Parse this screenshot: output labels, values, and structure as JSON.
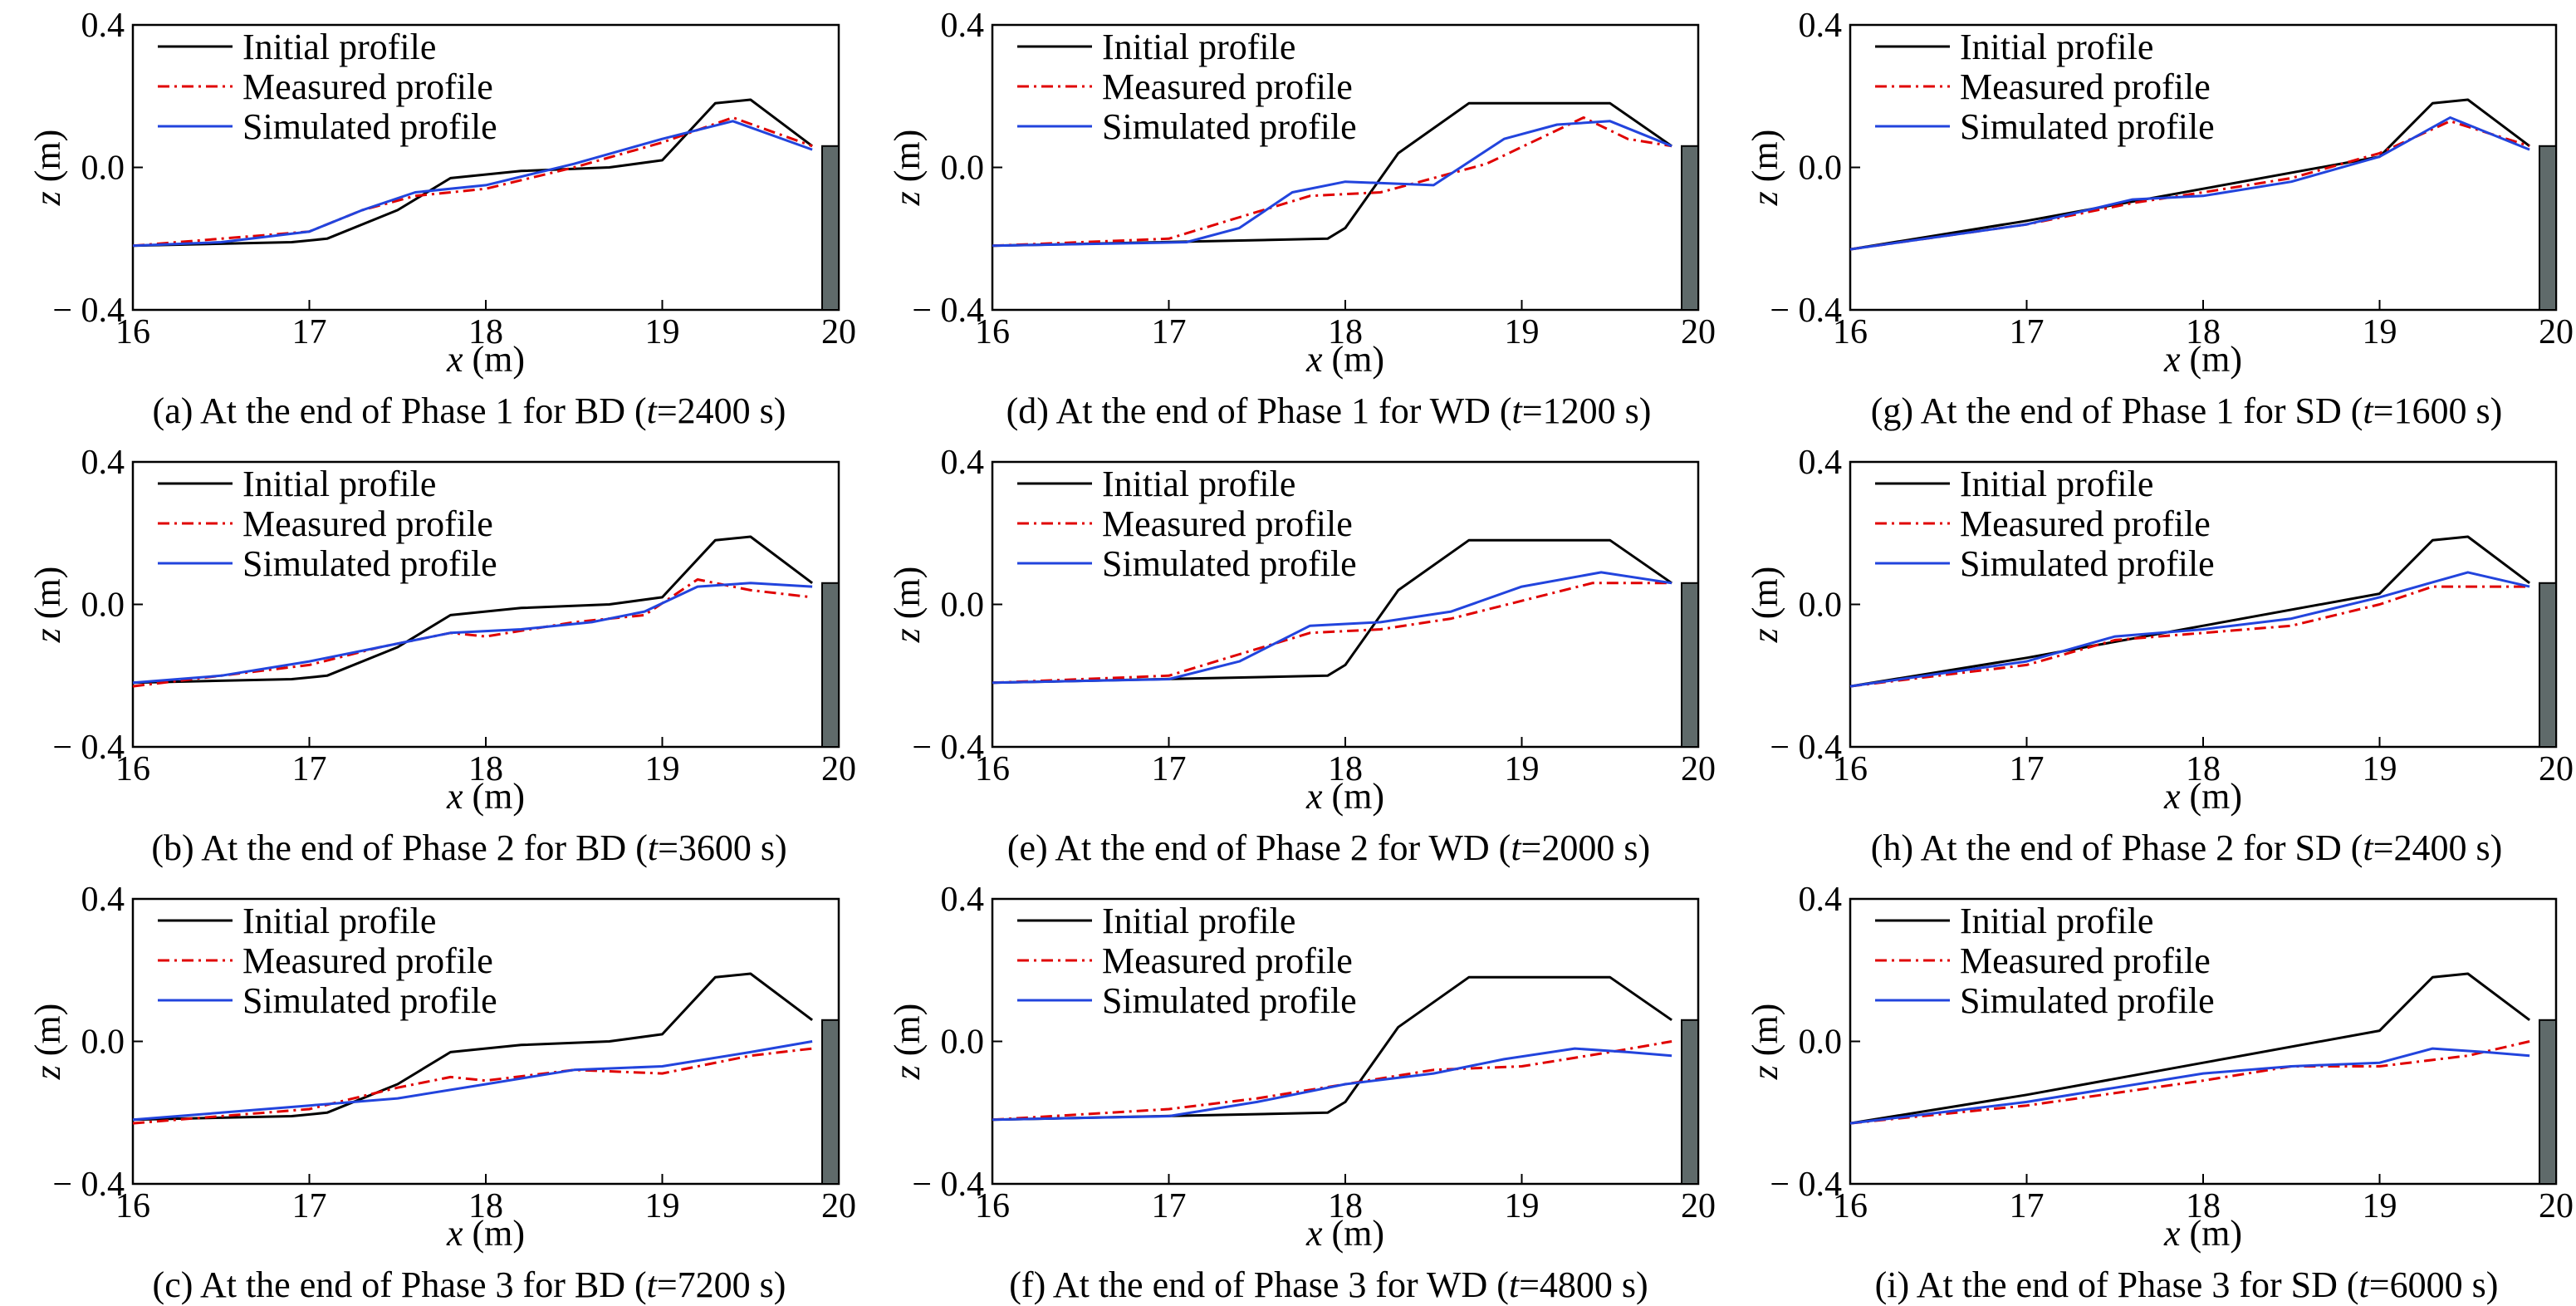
{
  "colors": {
    "initial": "#000000",
    "measured": "#e00000",
    "simulated": "#2244dd",
    "wall": "#5f6a6a"
  },
  "chart_data": [
    {
      "type": "line",
      "caption": "(a) At the end of Phase 1 for BD (t=2400 s)",
      "caption_parts": [
        "(a) At the end of Phase 1 for BD (",
        "t",
        "=2400 s)"
      ],
      "xlabel": "x (m)",
      "ylabel": "z (m)",
      "xlim": [
        16,
        20
      ],
      "ylim": [
        -0.4,
        0.4
      ],
      "xticks": [
        "16",
        "17",
        "18",
        "19",
        "20"
      ],
      "yticks": [
        "0.4",
        "0.0",
        "− 0.4"
      ],
      "legend_position": "upper-left",
      "series": [
        {
          "name": "Initial profile",
          "style": "solid",
          "x": [
            16,
            16.9,
            17.1,
            17.5,
            17.8,
            18.2,
            18.7,
            19,
            19.3,
            19.5,
            19.85
          ],
          "y": [
            -0.22,
            -0.21,
            -0.2,
            -0.12,
            -0.03,
            -0.01,
            0.0,
            0.02,
            0.18,
            0.19,
            0.06
          ]
        },
        {
          "name": "Measured profile",
          "style": "dashdot",
          "x": [
            16,
            16.5,
            17.0,
            17.3,
            17.6,
            18.0,
            18.5,
            19.0,
            19.4,
            19.85
          ],
          "y": [
            -0.22,
            -0.2,
            -0.18,
            -0.12,
            -0.08,
            -0.06,
            0.0,
            0.07,
            0.14,
            0.06
          ]
        },
        {
          "name": "Simulated profile",
          "style": "solid",
          "x": [
            16,
            16.5,
            17.0,
            17.3,
            17.6,
            18.0,
            18.5,
            19.0,
            19.4,
            19.85
          ],
          "y": [
            -0.22,
            -0.21,
            -0.18,
            -0.12,
            -0.07,
            -0.05,
            0.01,
            0.08,
            0.13,
            0.05
          ]
        }
      ]
    },
    {
      "type": "line",
      "caption": "(b) At the end of Phase 2 for BD (t=3600 s)",
      "caption_parts": [
        "(b) At the end of Phase 2 for BD (",
        "t",
        "=3600 s)"
      ],
      "xlabel": "x (m)",
      "ylabel": "z (m)",
      "xlim": [
        16,
        20
      ],
      "ylim": [
        -0.4,
        0.4
      ],
      "xticks": [
        "16",
        "17",
        "18",
        "19",
        "20"
      ],
      "yticks": [
        "0.4",
        "0.0",
        "− 0.4"
      ],
      "legend_position": "upper-left",
      "series": [
        {
          "name": "Initial profile",
          "style": "solid",
          "x": [
            16,
            16.9,
            17.1,
            17.5,
            17.8,
            18.2,
            18.7,
            19,
            19.3,
            19.5,
            19.85
          ],
          "y": [
            -0.22,
            -0.21,
            -0.2,
            -0.12,
            -0.03,
            -0.01,
            0.0,
            0.02,
            0.18,
            0.19,
            0.06
          ]
        },
        {
          "name": "Measured profile",
          "style": "dashdot",
          "x": [
            16,
            16.5,
            17.0,
            17.4,
            17.8,
            18.0,
            18.5,
            18.9,
            19.2,
            19.5,
            19.85
          ],
          "y": [
            -0.23,
            -0.2,
            -0.17,
            -0.12,
            -0.08,
            -0.09,
            -0.05,
            -0.03,
            0.07,
            0.04,
            0.02
          ]
        },
        {
          "name": "Simulated profile",
          "style": "solid",
          "x": [
            16,
            16.5,
            17.0,
            17.4,
            17.8,
            18.2,
            18.6,
            18.9,
            19.2,
            19.5,
            19.85
          ],
          "y": [
            -0.22,
            -0.2,
            -0.16,
            -0.12,
            -0.08,
            -0.07,
            -0.05,
            -0.02,
            0.05,
            0.06,
            0.05
          ]
        }
      ]
    },
    {
      "type": "line",
      "caption": "(c) At the end of Phase 3 for BD (t=7200 s)",
      "caption_parts": [
        "(c) At the end of Phase 3 for BD (",
        "t",
        "=7200 s)"
      ],
      "xlabel": "x (m)",
      "ylabel": "z (m)",
      "xlim": [
        16,
        20
      ],
      "ylim": [
        -0.4,
        0.4
      ],
      "xticks": [
        "16",
        "17",
        "18",
        "19",
        "20"
      ],
      "yticks": [
        "0.4",
        "0.0",
        "− 0.4"
      ],
      "legend_position": "upper-left",
      "series": [
        {
          "name": "Initial profile",
          "style": "solid",
          "x": [
            16,
            16.9,
            17.1,
            17.5,
            17.8,
            18.2,
            18.7,
            19,
            19.3,
            19.5,
            19.85
          ],
          "y": [
            -0.22,
            -0.21,
            -0.2,
            -0.12,
            -0.03,
            -0.01,
            0.0,
            0.02,
            0.18,
            0.19,
            0.06
          ]
        },
        {
          "name": "Measured profile",
          "style": "dashdot",
          "x": [
            16,
            16.5,
            17.0,
            17.5,
            17.8,
            18.0,
            18.5,
            19.0,
            19.5,
            19.85
          ],
          "y": [
            -0.23,
            -0.21,
            -0.19,
            -0.13,
            -0.1,
            -0.11,
            -0.08,
            -0.09,
            -0.04,
            -0.02
          ]
        },
        {
          "name": "Simulated profile",
          "style": "solid",
          "x": [
            16,
            16.5,
            17.0,
            17.5,
            18.0,
            18.5,
            19.0,
            19.5,
            19.85
          ],
          "y": [
            -0.22,
            -0.2,
            -0.18,
            -0.16,
            -0.12,
            -0.08,
            -0.07,
            -0.03,
            0.0
          ]
        }
      ]
    },
    {
      "type": "line",
      "caption": "(d) At the end of Phase 1 for WD (t=1200 s)",
      "caption_parts": [
        "(d) At the end of Phase 1 for WD (",
        "t",
        "=1200 s)"
      ],
      "xlabel": "x (m)",
      "ylabel": "z (m)",
      "xlim": [
        16,
        20
      ],
      "ylim": [
        -0.4,
        0.4
      ],
      "xticks": [
        "16",
        "17",
        "18",
        "19",
        "20"
      ],
      "yticks": [
        "0.4",
        "0.0",
        "− 0.4"
      ],
      "legend_position": "upper-left",
      "series": [
        {
          "name": "Initial profile",
          "style": "solid",
          "x": [
            16,
            17.9,
            18.0,
            18.3,
            18.7,
            19.0,
            19.5,
            19.85
          ],
          "y": [
            -0.22,
            -0.2,
            -0.17,
            0.04,
            0.18,
            0.18,
            0.18,
            0.06
          ]
        },
        {
          "name": "Measured profile",
          "style": "dashdot",
          "x": [
            16,
            17.0,
            17.4,
            17.8,
            18.2,
            18.8,
            19.35,
            19.6,
            19.85
          ],
          "y": [
            -0.22,
            -0.2,
            -0.14,
            -0.08,
            -0.07,
            0.01,
            0.14,
            0.08,
            0.06
          ]
        },
        {
          "name": "Simulated profile",
          "style": "solid",
          "x": [
            16,
            17.1,
            17.4,
            17.7,
            18.0,
            18.5,
            18.9,
            19.2,
            19.5,
            19.85
          ],
          "y": [
            -0.22,
            -0.21,
            -0.17,
            -0.07,
            -0.04,
            -0.05,
            0.08,
            0.12,
            0.13,
            0.06
          ]
        }
      ]
    },
    {
      "type": "line",
      "caption": "(e) At the end of Phase 2 for WD (t=2000 s)",
      "caption_parts": [
        "(e) At the end of Phase 2 for WD (",
        "t",
        "=2000 s)"
      ],
      "xlabel": "x (m)",
      "ylabel": "z (m)",
      "xlim": [
        16,
        20
      ],
      "ylim": [
        -0.4,
        0.4
      ],
      "xticks": [
        "16",
        "17",
        "18",
        "19",
        "20"
      ],
      "yticks": [
        "0.4",
        "0.0",
        "− 0.4"
      ],
      "legend_position": "upper-left",
      "series": [
        {
          "name": "Initial profile",
          "style": "solid",
          "x": [
            16,
            17.9,
            18.0,
            18.3,
            18.7,
            19.0,
            19.5,
            19.85
          ],
          "y": [
            -0.22,
            -0.2,
            -0.17,
            0.04,
            0.18,
            0.18,
            0.18,
            0.06
          ]
        },
        {
          "name": "Measured profile",
          "style": "dashdot",
          "x": [
            16,
            17.0,
            17.4,
            17.8,
            18.2,
            18.6,
            19.0,
            19.4,
            19.85
          ],
          "y": [
            -0.22,
            -0.2,
            -0.14,
            -0.08,
            -0.07,
            -0.04,
            0.01,
            0.06,
            0.06
          ]
        },
        {
          "name": "Simulated profile",
          "style": "solid",
          "x": [
            16,
            17.0,
            17.4,
            17.8,
            18.2,
            18.6,
            19.0,
            19.45,
            19.85
          ],
          "y": [
            -0.22,
            -0.21,
            -0.16,
            -0.06,
            -0.05,
            -0.02,
            0.05,
            0.09,
            0.06
          ]
        }
      ]
    },
    {
      "type": "line",
      "caption": "(f) At the end of Phase 3 for WD (t=4800 s)",
      "caption_parts": [
        "(f) At the end of Phase 3 for WD (",
        "t",
        "=4800 s)"
      ],
      "xlabel": "x (m)",
      "ylabel": "z (m)",
      "xlim": [
        16,
        20
      ],
      "ylim": [
        -0.4,
        0.4
      ],
      "xticks": [
        "16",
        "17",
        "18",
        "19",
        "20"
      ],
      "yticks": [
        "0.4",
        "0.0",
        "− 0.4"
      ],
      "legend_position": "upper-left",
      "series": [
        {
          "name": "Initial profile",
          "style": "solid",
          "x": [
            16,
            17.9,
            18.0,
            18.3,
            18.7,
            19.0,
            19.5,
            19.85
          ],
          "y": [
            -0.22,
            -0.2,
            -0.17,
            0.04,
            0.18,
            0.18,
            0.18,
            0.06
          ]
        },
        {
          "name": "Measured profile",
          "style": "dashdot",
          "x": [
            16,
            17.0,
            17.5,
            18.0,
            18.5,
            19.0,
            19.5,
            19.85
          ],
          "y": [
            -0.22,
            -0.19,
            -0.16,
            -0.12,
            -0.08,
            -0.07,
            -0.03,
            0.0
          ]
        },
        {
          "name": "Simulated profile",
          "style": "solid",
          "x": [
            16,
            17.0,
            17.5,
            18.0,
            18.5,
            18.9,
            19.3,
            19.6,
            19.85
          ],
          "y": [
            -0.22,
            -0.21,
            -0.17,
            -0.12,
            -0.09,
            -0.05,
            -0.02,
            -0.03,
            -0.04
          ]
        }
      ]
    },
    {
      "type": "line",
      "caption": "(g) At the end of Phase 1 for SD (t=1600 s)",
      "caption_parts": [
        "(g) At the end of Phase 1 for SD (",
        "t",
        "=1600 s)"
      ],
      "xlabel": "x (m)",
      "ylabel": "z (m)",
      "xlim": [
        16,
        20
      ],
      "ylim": [
        -0.4,
        0.4
      ],
      "xticks": [
        "16",
        "17",
        "18",
        "19",
        "20"
      ],
      "yticks": [
        "0.4",
        "0.0",
        "− 0.4"
      ],
      "legend_position": "upper-left",
      "series": [
        {
          "name": "Initial profile",
          "style": "solid",
          "x": [
            16,
            17.0,
            18.0,
            19.0,
            19.3,
            19.5,
            19.85
          ],
          "y": [
            -0.23,
            -0.15,
            -0.06,
            0.03,
            0.18,
            0.19,
            0.06
          ]
        },
        {
          "name": "Measured profile",
          "style": "dashdot",
          "x": [
            16,
            17.0,
            17.6,
            18.0,
            18.5,
            19.0,
            19.4,
            19.85
          ],
          "y": [
            -0.23,
            -0.16,
            -0.1,
            -0.07,
            -0.03,
            0.04,
            0.13,
            0.06
          ]
        },
        {
          "name": "Simulated profile",
          "style": "solid",
          "x": [
            16,
            17.0,
            17.6,
            18.0,
            18.5,
            19.0,
            19.4,
            19.85
          ],
          "y": [
            -0.23,
            -0.16,
            -0.09,
            -0.08,
            -0.04,
            0.03,
            0.14,
            0.05
          ]
        }
      ]
    },
    {
      "type": "line",
      "caption": "(h) At the end of Phase 2 for SD (t=2400 s)",
      "caption_parts": [
        "(h) At the end of Phase 2 for SD (",
        "t",
        "=2400 s)"
      ],
      "xlabel": "x (m)",
      "ylabel": "z (m)",
      "xlim": [
        16,
        20
      ],
      "ylim": [
        -0.4,
        0.4
      ],
      "xticks": [
        "16",
        "17",
        "18",
        "19",
        "20"
      ],
      "yticks": [
        "0.4",
        "0.0",
        "− 0.4"
      ],
      "legend_position": "upper-left",
      "series": [
        {
          "name": "Initial profile",
          "style": "solid",
          "x": [
            16,
            17.0,
            18.0,
            19.0,
            19.3,
            19.5,
            19.85
          ],
          "y": [
            -0.23,
            -0.15,
            -0.06,
            0.03,
            0.18,
            0.19,
            0.06
          ]
        },
        {
          "name": "Measured profile",
          "style": "dashdot",
          "x": [
            16,
            17.0,
            17.5,
            18.0,
            18.5,
            19.0,
            19.3,
            19.85
          ],
          "y": [
            -0.23,
            -0.17,
            -0.1,
            -0.08,
            -0.06,
            0.0,
            0.05,
            0.05
          ]
        },
        {
          "name": "Simulated profile",
          "style": "solid",
          "x": [
            16,
            17.0,
            17.5,
            18.0,
            18.5,
            19.0,
            19.5,
            19.85
          ],
          "y": [
            -0.23,
            -0.16,
            -0.09,
            -0.07,
            -0.04,
            0.02,
            0.09,
            0.05
          ]
        }
      ]
    },
    {
      "type": "line",
      "caption": "(i) At the end of Phase 3 for SD (t=6000 s)",
      "caption_parts": [
        "(i) At the end of Phase 3 for SD (",
        "t",
        "=6000 s)"
      ],
      "xlabel": "x (m)",
      "ylabel": "z (m)",
      "xlim": [
        16,
        20
      ],
      "ylim": [
        -0.4,
        0.4
      ],
      "xticks": [
        "16",
        "17",
        "18",
        "19",
        "20"
      ],
      "yticks": [
        "0.4",
        "0.0",
        "− 0.4"
      ],
      "legend_position": "upper-left",
      "series": [
        {
          "name": "Initial profile",
          "style": "solid",
          "x": [
            16,
            17.0,
            18.0,
            19.0,
            19.3,
            19.5,
            19.85
          ],
          "y": [
            -0.23,
            -0.15,
            -0.06,
            0.03,
            0.18,
            0.19,
            0.06
          ]
        },
        {
          "name": "Measured profile",
          "style": "dashdot",
          "x": [
            16,
            17.0,
            18.0,
            18.5,
            19.0,
            19.5,
            19.85
          ],
          "y": [
            -0.23,
            -0.18,
            -0.11,
            -0.07,
            -0.07,
            -0.04,
            0.0
          ]
        },
        {
          "name": "Simulated profile",
          "style": "solid",
          "x": [
            16,
            17.0,
            18.0,
            18.5,
            19.0,
            19.3,
            19.6,
            19.85
          ],
          "y": [
            -0.23,
            -0.17,
            -0.09,
            -0.07,
            -0.06,
            -0.02,
            -0.03,
            -0.04
          ]
        }
      ]
    }
  ]
}
